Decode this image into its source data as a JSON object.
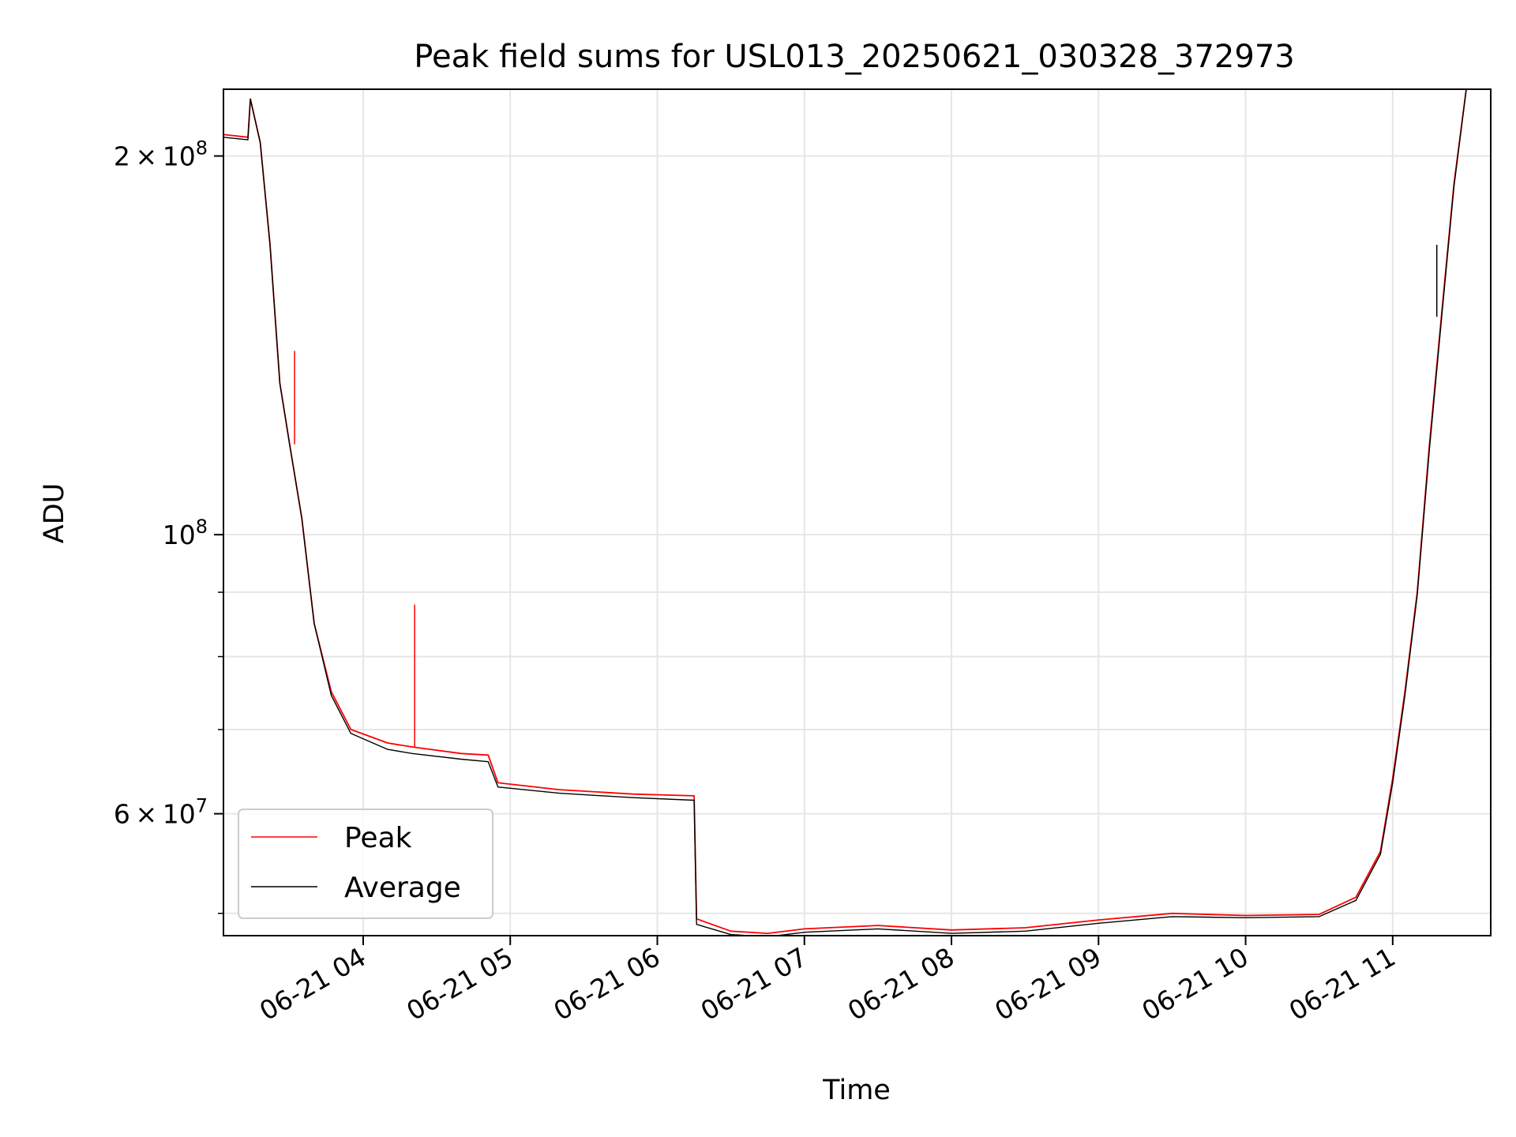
{
  "chart_data": {
    "type": "line",
    "title": "Peak field sums for USL013_20250621_030328_372973",
    "xlabel": "Time",
    "ylabel": "ADU",
    "y_scale": "log",
    "grid": true,
    "legend_position": "lower-left",
    "xlim": [
      "2025-06-21 03:03",
      "2025-06-21 11:40"
    ],
    "ylim": [
      48000000,
      226000000
    ],
    "x_ticks": [
      {
        "value": "2025-06-21 04:00",
        "label": "06-21 04"
      },
      {
        "value": "2025-06-21 05:00",
        "label": "06-21 05"
      },
      {
        "value": "2025-06-21 06:00",
        "label": "06-21 06"
      },
      {
        "value": "2025-06-21 07:00",
        "label": "06-21 07"
      },
      {
        "value": "2025-06-21 08:00",
        "label": "06-21 08"
      },
      {
        "value": "2025-06-21 09:00",
        "label": "06-21 09"
      },
      {
        "value": "2025-06-21 10:00",
        "label": "06-21 10"
      },
      {
        "value": "2025-06-21 11:00",
        "label": "06-21 11"
      }
    ],
    "y_ticks_major": [
      {
        "value": 60000000,
        "mantissa": "6",
        "exponent": "7"
      },
      {
        "value": 100000000,
        "mantissa": "",
        "exponent": "8"
      },
      {
        "value": 200000000,
        "mantissa": "2",
        "exponent": "8"
      }
    ],
    "y_ticks_minor": [
      50000000,
      70000000,
      80000000,
      90000000
    ],
    "series": [
      {
        "name": "Peak",
        "color": "#ff0000",
        "x": [
          "2025-06-21 03:03",
          "2025-06-21 03:13",
          "2025-06-21 03:14",
          "2025-06-21 03:18",
          "2025-06-21 03:22",
          "2025-06-21 03:26",
          "2025-06-21 03:30",
          "2025-06-21 03:35",
          "2025-06-21 03:40",
          "2025-06-21 03:47",
          "2025-06-21 03:55",
          "2025-06-21 04:10",
          "2025-06-21 04:20",
          "2025-06-21 04:40",
          "2025-06-21 04:51",
          "2025-06-21 04:55",
          "2025-06-21 05:20",
          "2025-06-21 05:50",
          "2025-06-21 06:15",
          "2025-06-21 06:16",
          "2025-06-21 06:30",
          "2025-06-21 06:45",
          "2025-06-21 07:00",
          "2025-06-21 07:30",
          "2025-06-21 08:00",
          "2025-06-21 08:30",
          "2025-06-21 09:00",
          "2025-06-21 09:30",
          "2025-06-21 10:00",
          "2025-06-21 10:30",
          "2025-06-21 10:45",
          "2025-06-21 10:55",
          "2025-06-21 11:00",
          "2025-06-21 11:05",
          "2025-06-21 11:10",
          "2025-06-21 11:15",
          "2025-06-21 11:20",
          "2025-06-21 11:25",
          "2025-06-21 11:30"
        ],
        "values": [
          208000000,
          207000000,
          222000000,
          205000000,
          170000000,
          132000000,
          118000000,
          103000000,
          85000000,
          75000000,
          70000000,
          68300000,
          67800000,
          67000000,
          66800000,
          63500000,
          62700000,
          62200000,
          62000000,
          49500000,
          48400000,
          48200000,
          48600000,
          48900000,
          48500000,
          48700000,
          49400000,
          50000000,
          49800000,
          49900000,
          51500000,
          56000000,
          64000000,
          75000000,
          90000000,
          118000000,
          150000000,
          190000000,
          226000000
        ]
      },
      {
        "name": "Average",
        "color": "#000000",
        "x": [
          "2025-06-21 03:03",
          "2025-06-21 03:13",
          "2025-06-21 03:14",
          "2025-06-21 03:18",
          "2025-06-21 03:22",
          "2025-06-21 03:26",
          "2025-06-21 03:30",
          "2025-06-21 03:35",
          "2025-06-21 03:40",
          "2025-06-21 03:47",
          "2025-06-21 03:55",
          "2025-06-21 04:10",
          "2025-06-21 04:20",
          "2025-06-21 04:40",
          "2025-06-21 04:51",
          "2025-06-21 04:55",
          "2025-06-21 05:20",
          "2025-06-21 05:50",
          "2025-06-21 06:15",
          "2025-06-21 06:16",
          "2025-06-21 06:30",
          "2025-06-21 06:45",
          "2025-06-21 07:00",
          "2025-06-21 07:30",
          "2025-06-21 08:00",
          "2025-06-21 08:30",
          "2025-06-21 09:00",
          "2025-06-21 09:30",
          "2025-06-21 10:00",
          "2025-06-21 10:30",
          "2025-06-21 10:45",
          "2025-06-21 10:55",
          "2025-06-21 11:00",
          "2025-06-21 11:05",
          "2025-06-21 11:10",
          "2025-06-21 11:15",
          "2025-06-21 11:20",
          "2025-06-21 11:25",
          "2025-06-21 11:30"
        ],
        "values": [
          207000000,
          206000000,
          222000000,
          205000000,
          170000000,
          132000000,
          118000000,
          103000000,
          85000000,
          74500000,
          69500000,
          67500000,
          67000000,
          66300000,
          66000000,
          63000000,
          62300000,
          61800000,
          61500000,
          49000000,
          48100000,
          47900000,
          48300000,
          48600000,
          48200000,
          48400000,
          49100000,
          49700000,
          49600000,
          49700000,
          51200000,
          55700000,
          63500000,
          74500000,
          89500000,
          117000000,
          149000000,
          189000000,
          226000000
        ]
      }
    ],
    "annotations": [
      {
        "series": "Peak",
        "x": "2025-06-21 04:21",
        "y": 88000000,
        "description": "spike"
      },
      {
        "series": "Peak",
        "x": "2025-06-21 03:32",
        "y": 140000000,
        "description": "spike"
      },
      {
        "series": "Average",
        "x": "2025-06-21 11:18",
        "y": 170000000,
        "description": "dip"
      }
    ]
  }
}
